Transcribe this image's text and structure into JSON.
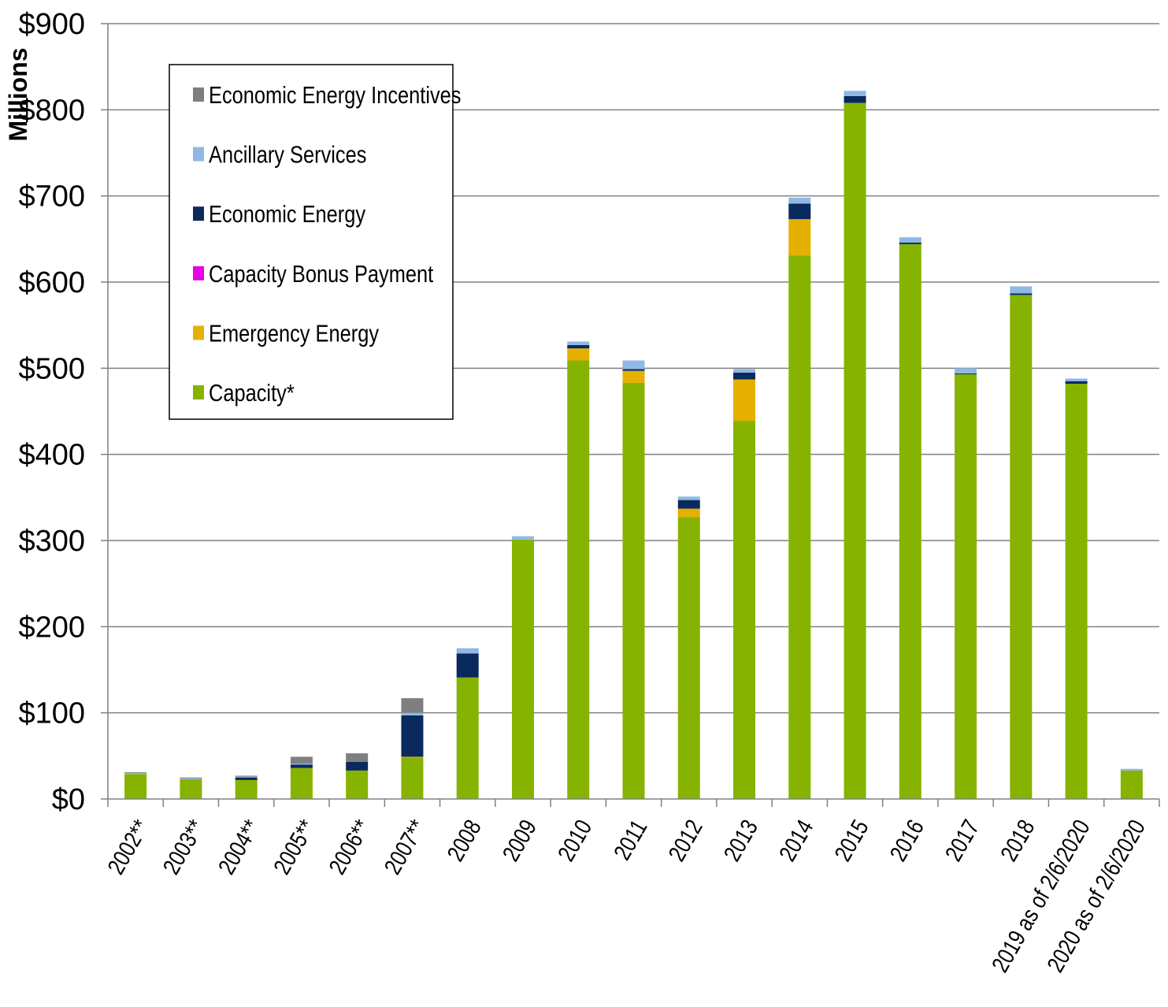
{
  "chart_data": {
    "type": "bar",
    "stacked": true,
    "ylabel": "Millions",
    "y_unit_prefix": "$",
    "ylim": [
      0,
      900
    ],
    "y_ticks": [
      0,
      100,
      200,
      300,
      400,
      500,
      600,
      700,
      800,
      900
    ],
    "y_tick_labels": [
      "$0",
      "$100",
      "$200",
      "$300",
      "$400",
      "$500",
      "$600",
      "$700",
      "$800",
      "$900"
    ],
    "grid": true,
    "legend_position": "top-left",
    "categories": [
      "2002**",
      "2003**",
      "2004**",
      "2005**",
      "2006**",
      "2007**",
      "2008",
      "2009",
      "2010",
      "2011",
      "2012",
      "2013",
      "2014",
      "2015",
      "2016",
      "2017",
      "2018",
      "2019 as of 2/6/2020",
      "2020 as of 2/6/2020"
    ],
    "series": [
      {
        "name": "Capacity*",
        "color": "#86b300",
        "values": [
          29,
          23,
          22,
          36,
          33,
          48,
          141,
          301,
          509,
          483,
          327,
          439,
          631,
          808,
          644,
          493,
          585,
          482,
          33
        ]
      },
      {
        "name": "Emergency Energy",
        "color": "#e6b000",
        "values": [
          0,
          0,
          0,
          0,
          0,
          1,
          0,
          0,
          14,
          14,
          10,
          48,
          42,
          0,
          0,
          0,
          0,
          0,
          0
        ]
      },
      {
        "name": "Capacity Bonus Payment",
        "color": "#e600e6",
        "values": [
          0,
          0,
          0,
          0,
          0,
          0,
          0,
          0,
          0,
          0,
          0,
          0,
          0,
          0,
          0,
          0,
          0,
          0,
          0
        ]
      },
      {
        "name": "Economic Energy",
        "color": "#0a2a5e",
        "values": [
          0,
          0,
          3,
          4,
          10,
          48,
          28,
          0,
          4,
          2,
          10,
          8,
          18,
          8,
          2,
          1,
          2,
          3,
          0
        ]
      },
      {
        "name": "Ancillary Services",
        "color": "#8fb8e6",
        "values": [
          1,
          1,
          1,
          1,
          0,
          3,
          6,
          4,
          4,
          10,
          4,
          4,
          7,
          6,
          6,
          6,
          8,
          3,
          2
        ]
      },
      {
        "name": "Economic Energy Incentives",
        "color": "#7f7f7f",
        "values": [
          1,
          1,
          1,
          8,
          10,
          17,
          0,
          0,
          0,
          0,
          0,
          0,
          0,
          0,
          0,
          0,
          0,
          0,
          0
        ]
      }
    ]
  }
}
